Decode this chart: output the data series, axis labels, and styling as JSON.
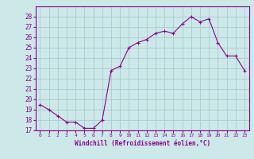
{
  "x": [
    0,
    1,
    2,
    3,
    4,
    5,
    6,
    7,
    8,
    9,
    10,
    11,
    12,
    13,
    14,
    15,
    16,
    17,
    18,
    19,
    20,
    21,
    22,
    23
  ],
  "y": [
    19.5,
    19.0,
    18.4,
    17.8,
    17.8,
    17.2,
    17.2,
    18.0,
    22.8,
    23.2,
    25.0,
    25.5,
    25.8,
    26.4,
    26.6,
    26.4,
    27.3,
    28.0,
    27.5,
    27.8,
    25.5,
    24.2,
    24.2,
    22.8
  ],
  "line_color": "#8B008B",
  "marker": "+",
  "marker_color": "#8B008B",
  "bg_color": "#cce8e8",
  "grid_color": "#aacccc",
  "xlabel": "Windchill (Refroidissement éolien,°C)",
  "xlabel_color": "#8B008B",
  "tick_color": "#8B008B",
  "ylim": [
    17,
    29
  ],
  "yticks": [
    17,
    18,
    19,
    20,
    21,
    22,
    23,
    24,
    25,
    26,
    27,
    28
  ],
  "xlim": [
    -0.5,
    23.5
  ],
  "xticks": [
    0,
    1,
    2,
    3,
    4,
    5,
    6,
    7,
    8,
    9,
    10,
    11,
    12,
    13,
    14,
    15,
    16,
    17,
    18,
    19,
    20,
    21,
    22,
    23
  ]
}
